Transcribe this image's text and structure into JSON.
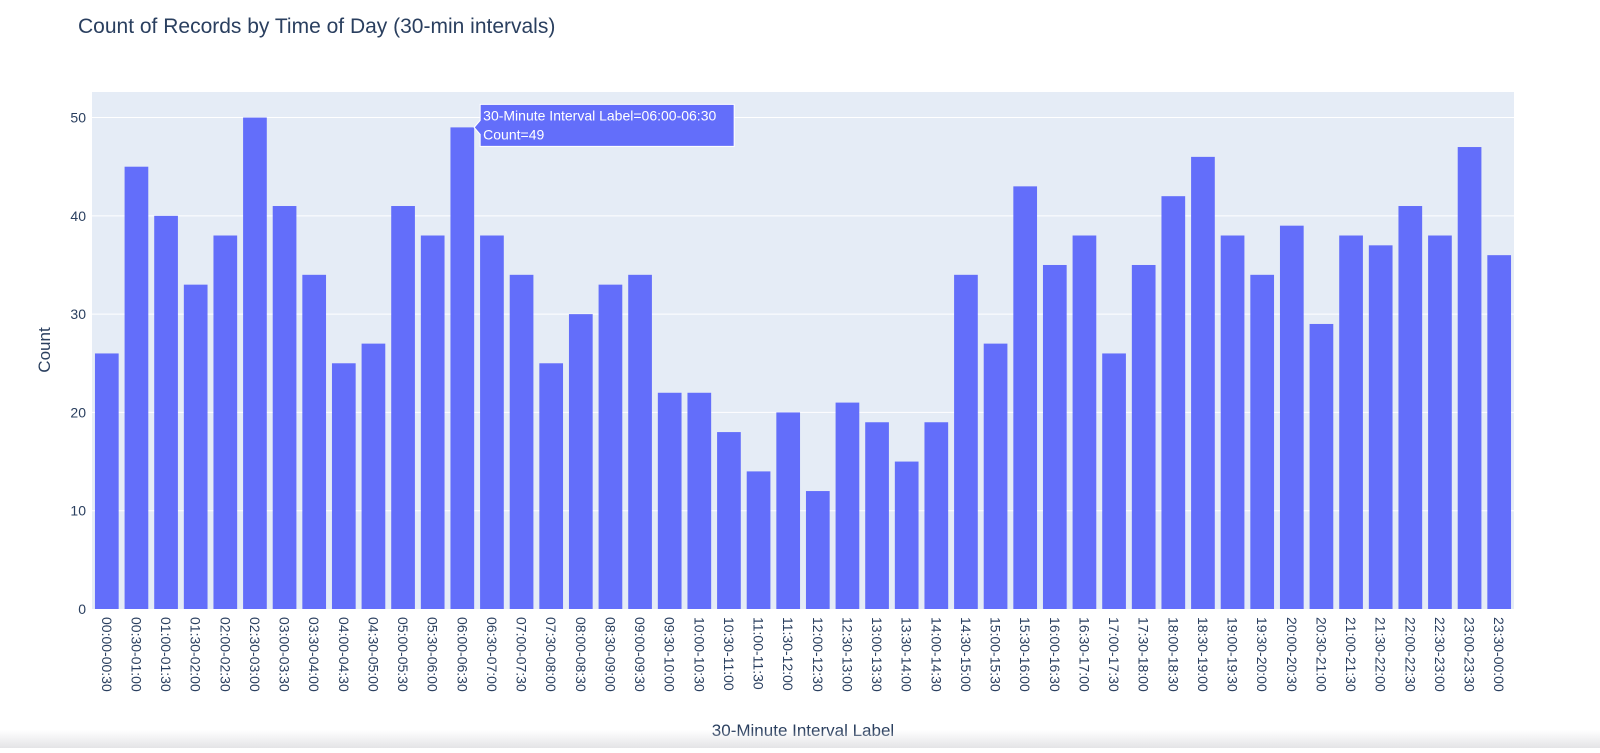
{
  "chart_data": {
    "type": "bar",
    "title": "Count of Records by Time of Day (30-min intervals)",
    "xlabel": "30-Minute Interval Label",
    "ylabel": "Count",
    "ylim": [
      0,
      52.6
    ],
    "yticks": [
      0,
      10,
      20,
      30,
      40,
      50
    ],
    "grid": true,
    "bar_color": "#636EFA",
    "plot_bg": "#E5ECF6",
    "categories": [
      "00:00-00:30",
      "00:30-01:00",
      "01:00-01:30",
      "01:30-02:00",
      "02:00-02:30",
      "02:30-03:00",
      "03:00-03:30",
      "03:30-04:00",
      "04:00-04:30",
      "04:30-05:00",
      "05:00-05:30",
      "05:30-06:00",
      "06:00-06:30",
      "06:30-07:00",
      "07:00-07:30",
      "07:30-08:00",
      "08:00-08:30",
      "08:30-09:00",
      "09:00-09:30",
      "09:30-10:00",
      "10:00-10:30",
      "10:30-11:00",
      "11:00-11:30",
      "11:30-12:00",
      "12:00-12:30",
      "12:30-13:00",
      "13:00-13:30",
      "13:30-14:00",
      "14:00-14:30",
      "14:30-15:00",
      "15:00-15:30",
      "15:30-16:00",
      "16:00-16:30",
      "16:30-17:00",
      "17:00-17:30",
      "17:30-18:00",
      "18:00-18:30",
      "18:30-19:00",
      "19:00-19:30",
      "19:30-20:00",
      "20:00-20:30",
      "20:30-21:00",
      "21:00-21:30",
      "21:30-22:00",
      "22:00-22:30",
      "22:30-23:00",
      "23:00-23:30",
      "23:30-00:00"
    ],
    "values": [
      26,
      45,
      40,
      33,
      38,
      50,
      41,
      34,
      25,
      27,
      41,
      38,
      49,
      38,
      34,
      25,
      30,
      33,
      34,
      22,
      22,
      18,
      14,
      20,
      12,
      21,
      19,
      15,
      19,
      34,
      27,
      43,
      35,
      38,
      26,
      35,
      42,
      46,
      38,
      34,
      39,
      29,
      38,
      37,
      41,
      38,
      47,
      36
    ],
    "tooltip": {
      "category_index": 12,
      "line1": "30-Minute Interval Label=06:00-06:30",
      "line2": "Count=49"
    }
  }
}
